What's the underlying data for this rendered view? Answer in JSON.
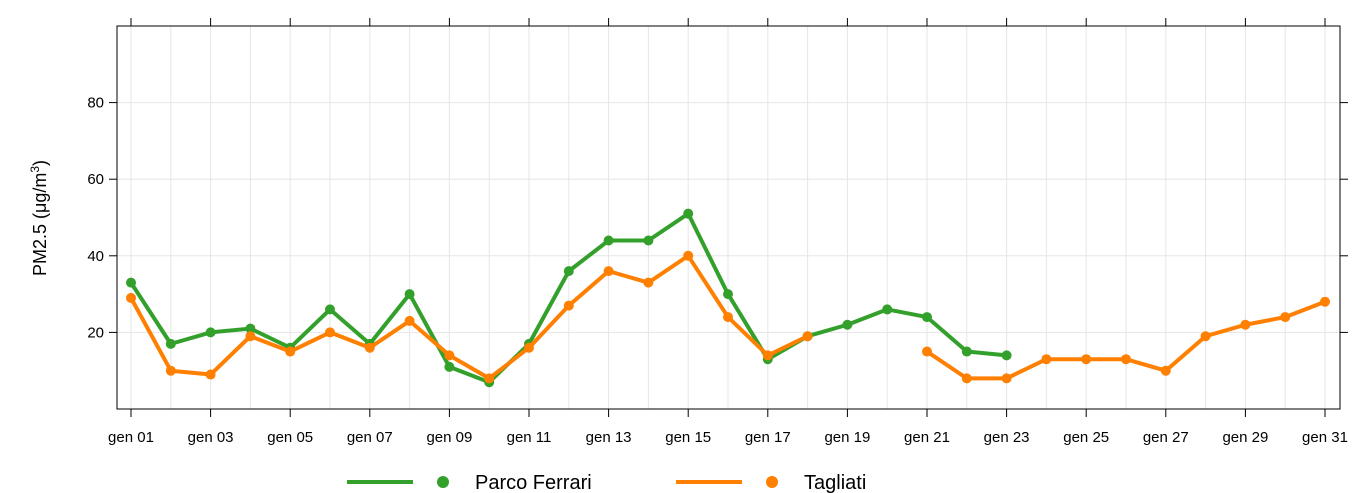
{
  "chart_data": {
    "type": "line",
    "ylabel_main": "PM2.5 (",
    "ylabel_unit": "μg/m",
    "ylabel_sup": "3",
    "ylabel_close": ")",
    "xlabel": "",
    "ylim": [
      0,
      100
    ],
    "y_ticks": [
      20,
      40,
      60,
      80
    ],
    "y_tick_labels": [
      "20",
      "40",
      "60",
      "80"
    ],
    "x_tick_days": [
      1,
      3,
      5,
      7,
      9,
      11,
      13,
      15,
      17,
      19,
      21,
      23,
      25,
      27,
      29,
      31
    ],
    "x_tick_labels": [
      "gen 01",
      "gen 03",
      "gen 05",
      "gen 07",
      "gen 09",
      "gen 11",
      "gen 13",
      "gen 15",
      "gen 17",
      "gen 19",
      "gen 21",
      "gen 23",
      "gen 25",
      "gen 27",
      "gen 29",
      "gen 31"
    ],
    "x_minor_days": [
      2,
      4,
      6,
      8,
      10,
      12,
      14,
      16,
      18,
      20,
      22,
      24,
      26,
      28,
      30
    ],
    "grid": true,
    "legend_position": "bottom",
    "x": [
      "gen 01",
      "gen 02",
      "gen 03",
      "gen 04",
      "gen 05",
      "gen 06",
      "gen 07",
      "gen 08",
      "gen 09",
      "gen 10",
      "gen 11",
      "gen 12",
      "gen 13",
      "gen 14",
      "gen 15",
      "gen 16",
      "gen 17",
      "gen 18",
      "gen 19",
      "gen 20",
      "gen 21",
      "gen 22",
      "gen 23",
      "gen 24",
      "gen 25",
      "gen 26",
      "gen 27",
      "gen 28",
      "gen 29",
      "gen 30",
      "gen 31"
    ],
    "series": [
      {
        "name": "Parco Ferrari",
        "color": "#33a02c",
        "values": [
          33,
          17,
          20,
          21,
          16,
          26,
          17,
          30,
          11,
          7,
          17,
          36,
          44,
          44,
          51,
          30,
          13,
          19,
          22,
          26,
          24,
          15,
          14,
          null,
          null,
          null,
          null,
          null,
          null,
          null,
          null
        ]
      },
      {
        "name": "Tagliati",
        "color": "#ff7f00",
        "values": [
          29,
          10,
          9,
          19,
          15,
          20,
          16,
          23,
          14,
          8,
          16,
          27,
          36,
          33,
          40,
          24,
          14,
          19,
          null,
          null,
          15,
          8,
          8,
          13,
          13,
          13,
          10,
          19,
          22,
          24,
          28
        ]
      }
    ]
  }
}
